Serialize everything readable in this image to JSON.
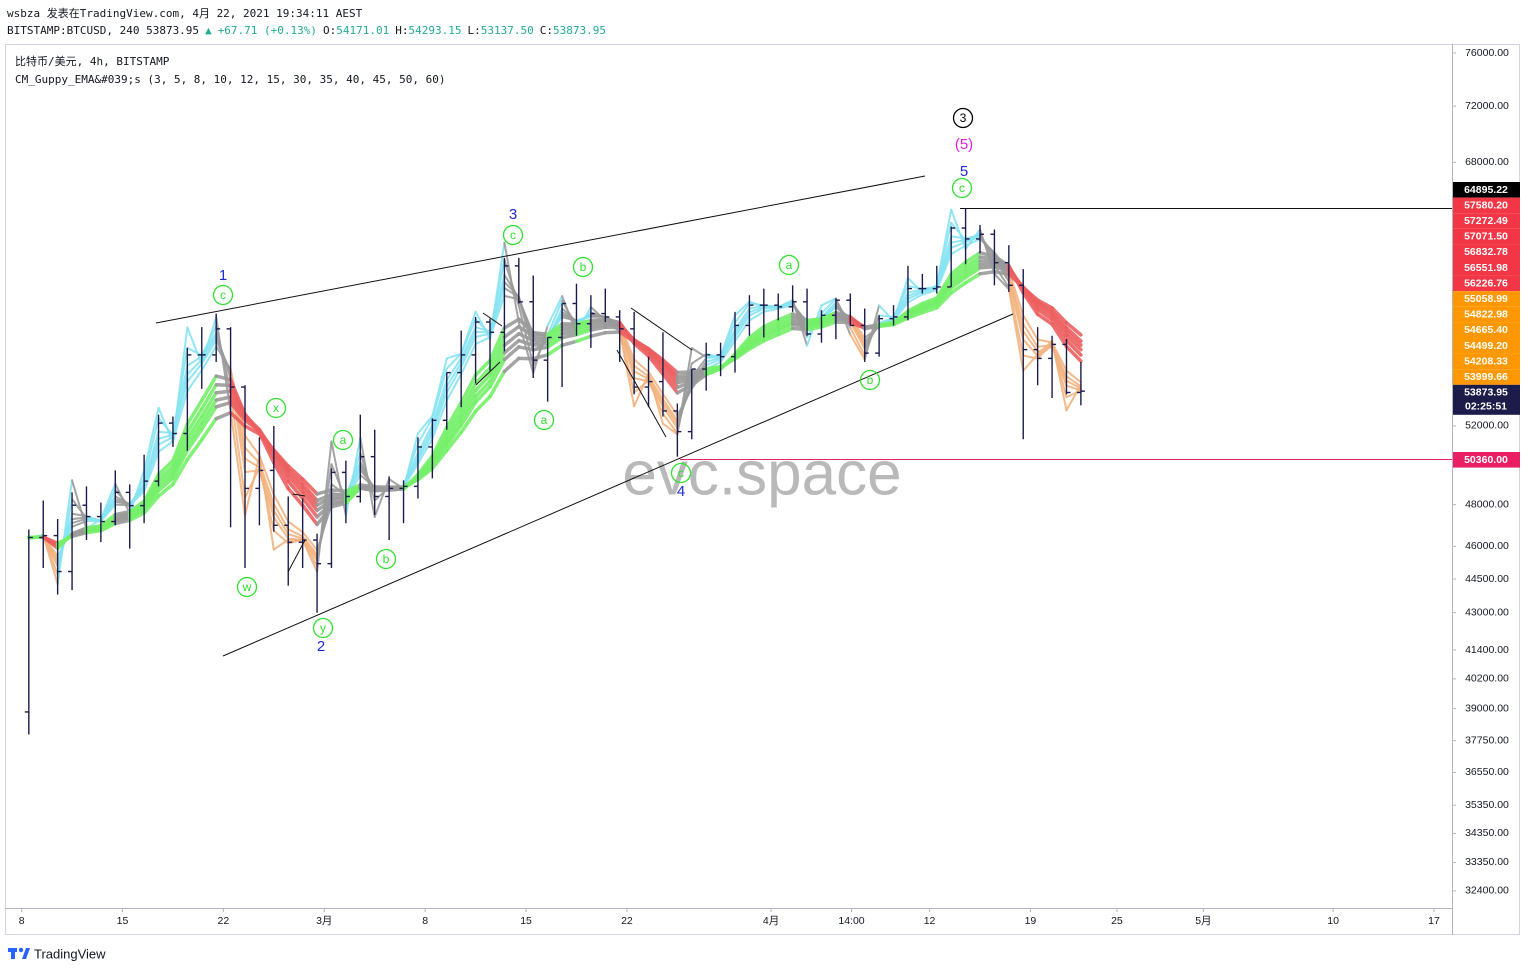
{
  "header": {
    "byline": "wsbza 发表在TradingView.com, 4月 22, 2021 19:34:11 AEST",
    "quote": [
      {
        "text": "BITSTAMP:BTCUSD, 240 53873.95",
        "color": "#131722"
      },
      {
        "text": "▲",
        "color": "#22ab94"
      },
      {
        "text": "+67.71 (+0.13%)",
        "color": "#22ab94"
      },
      {
        "text": "O:",
        "color": "#131722"
      },
      {
        "text": "54171.01",
        "color": "#22ab94"
      },
      {
        "text": "H:",
        "color": "#131722"
      },
      {
        "text": "54293.15",
        "color": "#22ab94"
      },
      {
        "text": "L:",
        "color": "#131722"
      },
      {
        "text": "53137.50",
        "color": "#22ab94"
      },
      {
        "text": "C:",
        "color": "#131722"
      },
      {
        "text": "53873.95",
        "color": "#22ab94"
      }
    ],
    "symbol": "比特币/美元, 4h, BITSTAMP",
    "indicator": "CM_Guppy_EMA&#039;s (3, 5, 8, 10, 12, 15, 30, 35, 40, 45, 50, 60)"
  },
  "chart_data": {
    "type": "ohlc",
    "color": "#1b1b4d",
    "log": true,
    "grid": false,
    "x": [
      "2021-02-08",
      "2021-02-09",
      "2021-02-10",
      "2021-02-11",
      "2021-02-12",
      "2021-02-13",
      "2021-02-14",
      "2021-02-15",
      "2021-02-16",
      "2021-02-17",
      "2021-02-18",
      "2021-02-19",
      "2021-02-20",
      "2021-02-21",
      "2021-02-22",
      "2021-02-23",
      "2021-02-24",
      "2021-02-25",
      "2021-02-26",
      "2021-02-27",
      "2021-02-28",
      "2021-03-01",
      "2021-03-02",
      "2021-03-03",
      "2021-03-04",
      "2021-03-05",
      "2021-03-06",
      "2021-03-07",
      "2021-03-08",
      "2021-03-09",
      "2021-03-10",
      "2021-03-11",
      "2021-03-12",
      "2021-03-13",
      "2021-03-14",
      "2021-03-15",
      "2021-03-16",
      "2021-03-17",
      "2021-03-18",
      "2021-03-19",
      "2021-03-20",
      "2021-03-21",
      "2021-03-22",
      "2021-03-23",
      "2021-03-24",
      "2021-03-25",
      "2021-03-26",
      "2021-03-27",
      "2021-03-28",
      "2021-03-29",
      "2021-03-30",
      "2021-03-31",
      "2021-04-01",
      "2021-04-02",
      "2021-04-03",
      "2021-04-04",
      "2021-04-05",
      "2021-04-06",
      "2021-04-07",
      "2021-04-08",
      "2021-04-09",
      "2021-04-10",
      "2021-04-11",
      "2021-04-12",
      "2021-04-13",
      "2021-04-14",
      "2021-04-15",
      "2021-04-16",
      "2021-04-17",
      "2021-04-18",
      "2021-04-19",
      "2021-04-20",
      "2021-04-21",
      "2021-04-22"
    ],
    "open": [
      38870,
      46420,
      46510,
      44840,
      47970,
      47420,
      47180,
      48600,
      47950,
      49160,
      52150,
      51600,
      55900,
      55900,
      57400,
      54100,
      48800,
      49700,
      47000,
      46200,
      46300,
      45200,
      49600,
      48400,
      50400,
      48400,
      48800,
      48900,
      50900,
      52300,
      54900,
      55900,
      57800,
      57200,
      61200,
      59000,
      55600,
      56900,
      58900,
      57700,
      58300,
      58100,
      57400,
      54100,
      54400,
      52800,
      51700,
      55100,
      55900,
      55800,
      57600,
      58800,
      58800,
      58700,
      59000,
      57100,
      58200,
      59100,
      57600,
      56000,
      58000,
      58100,
      59800,
      59800,
      59900,
      63600,
      62900,
      63200,
      61400,
      60000,
      56200,
      55700,
      56500,
      53800
    ],
    "high": [
      46800,
      48200,
      47300,
      48600,
      48900,
      48100,
      49700,
      49000,
      50500,
      52600,
      52500,
      56300,
      57500,
      58300,
      57500,
      54200,
      51400,
      52000,
      48400,
      48300,
      46600,
      49800,
      50200,
      52600,
      51800,
      49400,
      49200,
      51400,
      52400,
      54900,
      57300,
      58100,
      58000,
      61700,
      61700,
      60600,
      56900,
      58900,
      60100,
      59400,
      59800,
      58500,
      58400,
      55800,
      57200,
      53200,
      55100,
      56600,
      56600,
      58400,
      59400,
      59800,
      59500,
      60000,
      59800,
      58500,
      59200,
      59500,
      58600,
      58200,
      58800,
      61200,
      60700,
      61200,
      63700,
      64900,
      63800,
      63500,
      62500,
      61000,
      57500,
      57000,
      56800,
      55500
    ],
    "low": [
      37990,
      45000,
      43800,
      44000,
      46300,
      46200,
      47000,
      45900,
      47100,
      48900,
      50900,
      50700,
      54000,
      55500,
      46900,
      45000,
      47000,
      46700,
      44200,
      45000,
      43000,
      45000,
      47100,
      48100,
      47500,
      46300,
      47100,
      48300,
      49300,
      51800,
      53000,
      54300,
      55000,
      56100,
      58900,
      54600,
      53300,
      54100,
      57000,
      56300,
      57800,
      55500,
      53700,
      53000,
      52500,
      50400,
      51300,
      53900,
      54700,
      54900,
      57000,
      56900,
      57900,
      58400,
      57000,
      56600,
      56800,
      57600,
      55500,
      55800,
      57600,
      57900,
      59500,
      59500,
      59900,
      61300,
      62000,
      60000,
      59600,
      51300,
      54200,
      53500,
      53700,
      53100
    ],
    "close": [
      46420,
      46510,
      44840,
      47970,
      47420,
      47180,
      48600,
      47950,
      49160,
      52150,
      51600,
      55900,
      55900,
      57400,
      54100,
      48800,
      49700,
      47000,
      46200,
      46300,
      45200,
      49600,
      48400,
      50400,
      48400,
      48800,
      48900,
      50900,
      52300,
      54900,
      55900,
      57800,
      57200,
      61200,
      59000,
      55600,
      56900,
      58900,
      57700,
      58300,
      58100,
      57400,
      54100,
      54400,
      52800,
      51700,
      55100,
      55900,
      55800,
      57600,
      58800,
      58800,
      58700,
      59000,
      57100,
      58200,
      59100,
      57600,
      56000,
      58000,
      58100,
      59800,
      59800,
      59900,
      63600,
      62900,
      63200,
      61400,
      60000,
      56200,
      55700,
      56500,
      53800,
      53873.95
    ],
    "ema_periods": [
      3,
      5,
      8,
      10,
      12,
      15,
      30,
      35,
      40,
      45,
      50,
      60
    ],
    "ribbon_colors": {
      "fast_up": "#86e3f2",
      "fast_down": "#f2b27e",
      "slow_up": "#74ef68",
      "slow_down": "#ec5f5f",
      "neutral": "#9a9a9a"
    },
    "xlim": [
      "2021-02-06T12:00",
      "2021-05-18T06:00"
    ],
    "xticks": [
      {
        "value": "2021-02-08",
        "label": "8"
      },
      {
        "value": "2021-02-15",
        "label": "15"
      },
      {
        "value": "2021-02-22",
        "label": "22"
      },
      {
        "value": "2021-03-01",
        "label": "3月"
      },
      {
        "value": "2021-03-08",
        "label": "8"
      },
      {
        "value": "2021-03-15",
        "label": "15"
      },
      {
        "value": "2021-03-22",
        "label": "22"
      },
      {
        "value": "2021-04-01",
        "label": "4月"
      },
      {
        "value": "2021-04-06T14:00",
        "label": "14:00"
      },
      {
        "value": "2021-04-12",
        "label": "12"
      },
      {
        "value": "2021-04-19",
        "label": "19"
      },
      {
        "value": "2021-04-25",
        "label": "25"
      },
      {
        "value": "2021-05-01",
        "label": "5月"
      },
      {
        "value": "2021-05-10",
        "label": "10"
      },
      {
        "value": "2021-05-17",
        "label": "17"
      }
    ],
    "ylim": [
      31840,
      76700
    ],
    "yticks": [
      {
        "value": 76000,
        "label": "76000.00"
      },
      {
        "value": 72000,
        "label": "72000.00"
      },
      {
        "value": 68000,
        "label": "68000.00"
      },
      {
        "value": 52000,
        "label": "52000.00"
      },
      {
        "value": 48000,
        "label": "48000.00"
      },
      {
        "value": 46000,
        "label": "46000.00"
      },
      {
        "value": 44500,
        "label": "44500.00"
      },
      {
        "value": 43000,
        "label": "43000.00"
      },
      {
        "value": 41400,
        "label": "41400.00"
      },
      {
        "value": 40200,
        "label": "40200.00"
      },
      {
        "value": 39000,
        "label": "39000.00"
      },
      {
        "value": 37750,
        "label": "37750.00"
      },
      {
        "value": 36550,
        "label": "36550.00"
      },
      {
        "value": 35350,
        "label": "35350.00"
      },
      {
        "value": 34350,
        "label": "34350.00"
      },
      {
        "value": 33350,
        "label": "33350.00"
      },
      {
        "value": 32400,
        "label": "32400.00"
      }
    ],
    "price_labels": [
      {
        "label": "64895.22",
        "color": "#000000"
      },
      {
        "label": "57580.20",
        "color": "#f23645"
      },
      {
        "label": "57272.49",
        "color": "#f23645"
      },
      {
        "label": "57071.50",
        "color": "#f23645"
      },
      {
        "label": "56832.78",
        "color": "#f23645"
      },
      {
        "label": "56551.98",
        "color": "#f23645"
      },
      {
        "label": "56226.76",
        "color": "#f23645"
      },
      {
        "label": "55058.99",
        "color": "#ff9800"
      },
      {
        "label": "54822.98",
        "color": "#ff9800"
      },
      {
        "label": "54665.40",
        "color": "#ff9800"
      },
      {
        "label": "54499.20",
        "color": "#ff9800"
      },
      {
        "label": "54208.33",
        "color": "#ff9800"
      },
      {
        "label": "53999.66",
        "color": "#ff9800"
      },
      {
        "label": "53873.95",
        "sub": "02:25:51",
        "color": "#1c1c4a"
      },
      {
        "label": "50360.00",
        "color": "#e91e63"
      }
    ],
    "annotations": [
      {
        "text": "3",
        "color": "#000000",
        "circled": true
      },
      {
        "text": "(5)",
        "color": "#e01ee0"
      },
      {
        "text": "5",
        "color": "#1f2bd6"
      },
      {
        "text": "c",
        "color": "#2fe02f",
        "circled": true
      },
      {
        "text": "3",
        "color": "#1f2bd6"
      },
      {
        "text": "c",
        "color": "#2fe02f",
        "circled": true
      },
      {
        "text": "1",
        "color": "#1f2bd6"
      },
      {
        "text": "c",
        "color": "#2fe02f",
        "circled": true
      },
      {
        "text": "b",
        "color": "#2fe02f",
        "circled": true
      },
      {
        "text": "a",
        "color": "#2fe02f",
        "circled": true
      },
      {
        "text": "x",
        "color": "#2fe02f",
        "circled": true
      },
      {
        "text": "a",
        "color": "#2fe02f",
        "circled": true
      },
      {
        "text": "a",
        "color": "#2fe02f",
        "circled": true
      },
      {
        "text": "w",
        "color": "#2fe02f",
        "circled": true
      },
      {
        "text": "b",
        "color": "#2fe02f",
        "circled": true
      },
      {
        "text": "y",
        "color": "#2fe02f",
        "circled": true
      },
      {
        "text": "2",
        "color": "#1f2bd6"
      },
      {
        "text": "c",
        "color": "#2fe02f",
        "circled": true
      },
      {
        "text": "4",
        "color": "#1f2bd6"
      },
      {
        "text": "b",
        "color": "#2fe02f",
        "circled": true
      }
    ],
    "watermark": "evc.space"
  },
  "footer": "TradingView"
}
